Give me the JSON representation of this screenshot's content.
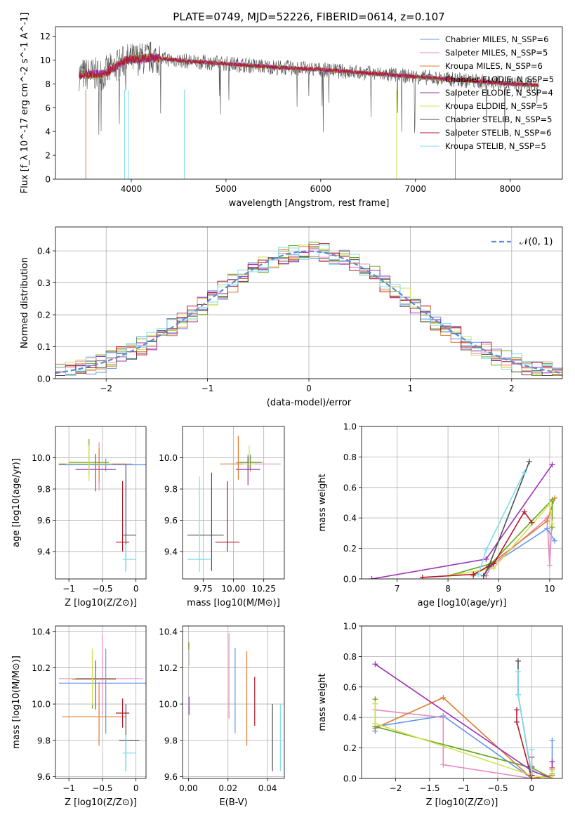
{
  "figure_title": "PLATE=0749, MJD=52226, FIBERID=0614, z=0.107",
  "series_colors": [
    "#6495ed",
    "#e78ac3",
    "#e07b2e",
    "#66a61e",
    "#9e32b5",
    "#d4e157",
    "#505050",
    "#b2182b",
    "#80deea"
  ],
  "chart_data": [
    {
      "id": "spectrum",
      "type": "line",
      "title": "PLATE=0749, MJD=52226, FIBERID=0614, z=0.107",
      "xlabel": "wavelength [Angstrom, rest frame]",
      "ylabel": "Flux [f_λ 10^-17 erg cm^-2 s^-1 A^-1]",
      "xlim": [
        3200,
        8550
      ],
      "ylim": [
        0,
        12.8
      ],
      "xticks": [
        4000,
        5000,
        6000,
        7000,
        8000
      ],
      "yticks": [
        0,
        2,
        4,
        6,
        8,
        10,
        12
      ],
      "legend_position": "top-right",
      "series": [
        {
          "name": "Chabrier MILES, N_SSP=6"
        },
        {
          "name": "Salpeter MILES, N_SSP=5"
        },
        {
          "name": "Kroupa MILES, N_SSP=6"
        },
        {
          "name": "Chabrier ELODIE, N_SSP=5"
        },
        {
          "name": "Salpeter ELODIE, N_SSP=4"
        },
        {
          "name": "Kroupa ELODIE, N_SSP=5"
        },
        {
          "name": "Chabrier STELIB, N_SSP=5"
        },
        {
          "name": "Salpeter STELIB, N_SSP=6"
        },
        {
          "name": "Kroupa STELIB, N_SSP=5"
        }
      ],
      "continuum": {
        "x": [
          3450,
          3700,
          3950,
          4200,
          4600,
          5000,
          5500,
          6000,
          6500,
          7000,
          7500,
          8000,
          8300
        ],
        "y": [
          8.8,
          8.8,
          10.0,
          10.2,
          9.9,
          9.7,
          9.4,
          9.2,
          8.9,
          8.6,
          8.3,
          8.0,
          7.9
        ]
      }
    },
    {
      "id": "residuals",
      "type": "step",
      "xlabel": "(data-model)/error",
      "ylabel": "Normed distribution",
      "xlim": [
        -2.5,
        2.5
      ],
      "ylim": [
        0,
        0.475
      ],
      "xticks": [
        -2,
        -1,
        0,
        1,
        2
      ],
      "yticks": [
        0.0,
        0.1,
        0.2,
        0.3,
        0.4
      ],
      "grid": true,
      "legend_position": "top-right",
      "reference_label": "𝒩(0, 1)",
      "reference_color": "#5b8bd6"
    },
    {
      "id": "age_vs_Z",
      "type": "errorbar",
      "xlabel": "Z [log10(Z/Z⊙)]",
      "ylabel": "age [log10(age/yr)]",
      "xlim": [
        -1.2,
        0.15
      ],
      "ylim": [
        9.225,
        10.2
      ],
      "xticks": [
        -1.0,
        -0.5,
        0.0
      ],
      "yticks": [
        9.4,
        9.6,
        9.8,
        10.0
      ],
      "grid": true,
      "points": [
        {
          "x": -0.45,
          "xerr": [
            0.7,
            0.6
          ],
          "y": 9.955,
          "yerr": [
            0.04,
            0.04
          ]
        },
        {
          "x": -0.55,
          "xerr": [
            0.6,
            0.5
          ],
          "y": 9.96,
          "yerr": [
            0.17,
            0.14
          ]
        },
        {
          "x": -0.55,
          "xerr": [
            0.6,
            0.4
          ],
          "y": 9.96,
          "yerr": [
            0.12,
            0.1
          ]
        },
        {
          "x": -0.7,
          "xerr": [
            0.3,
            0.3
          ],
          "y": 9.97,
          "yerr": [
            0.08,
            0.15
          ]
        },
        {
          "x": -0.6,
          "xerr": [
            0.3,
            0.3
          ],
          "y": 9.925,
          "yerr": [
            0.14,
            0.1
          ]
        },
        {
          "x": -0.7,
          "xerr": [
            0.35,
            0.35
          ],
          "y": 9.96,
          "yerr": [
            0.11,
            0.12
          ]
        },
        {
          "x": -0.15,
          "xerr": [
            0.05,
            0.15
          ],
          "y": 9.505,
          "yerr": [
            0.23,
            0.45
          ]
        },
        {
          "x": -0.2,
          "xerr": [
            0.1,
            0.1
          ],
          "y": 9.46,
          "yerr": [
            0.06,
            0.39
          ]
        },
        {
          "x": -0.15,
          "xerr": [
            0.05,
            0.15
          ],
          "y": 9.35,
          "yerr": [
            0.08,
            0.1
          ]
        }
      ]
    },
    {
      "id": "age_vs_mass",
      "type": "errorbar",
      "xlabel": "mass [log10(M/M⊙)]",
      "xlim": [
        9.58,
        10.42
      ],
      "ylim": [
        9.225,
        10.2
      ],
      "xticks": [
        9.75,
        10.0,
        10.25
      ],
      "xticklabels": [
        "9.75",
        "10.00",
        "10.25"
      ],
      "yticks": [
        9.4,
        9.6,
        9.8,
        10.0
      ],
      "grid": true,
      "points": [
        {
          "x": 10.12,
          "xerr": [
            0.1,
            0.1
          ],
          "y": 9.97,
          "yerr": [
            0.05,
            0.05
          ]
        },
        {
          "x": 10.14,
          "xerr": [
            0.2,
            0.25
          ],
          "y": 9.96,
          "yerr": [
            0.05,
            0.05
          ]
        },
        {
          "x": 10.04,
          "xerr": [
            0.15,
            0.15
          ],
          "y": 9.96,
          "yerr": [
            0.1,
            0.18
          ]
        },
        {
          "x": 10.14,
          "xerr": [
            0.1,
            0.1
          ],
          "y": 9.97,
          "yerr": [
            0.05,
            0.05
          ]
        },
        {
          "x": 10.12,
          "xerr": [
            0.1,
            0.1
          ],
          "y": 9.925,
          "yerr": [
            0.1,
            0.08
          ]
        },
        {
          "x": 10.13,
          "xerr": [
            0.05,
            0.05
          ],
          "y": 9.96,
          "yerr": [
            0.03,
            0.12
          ]
        },
        {
          "x": 9.82,
          "xerr": [
            0.2,
            0.1
          ],
          "y": 9.505,
          "yerr": [
            0.23,
            0.4
          ]
        },
        {
          "x": 9.95,
          "xerr": [
            0.1,
            0.1
          ],
          "y": 9.46,
          "yerr": [
            0.06,
            0.39
          ]
        },
        {
          "x": 9.72,
          "xerr": [
            0.1,
            0.1
          ],
          "y": 9.35,
          "yerr": [
            0.08,
            0.53
          ]
        }
      ]
    },
    {
      "id": "weight_vs_age",
      "type": "line",
      "xlabel": "age [log10(age/yr)]",
      "ylabel": "mass weight",
      "xlim": [
        6.3,
        10.25
      ],
      "ylim": [
        0,
        1
      ],
      "xticks": [
        7,
        8,
        9,
        10
      ],
      "yticks": [
        0.0,
        0.2,
        0.4,
        0.6,
        0.8,
        1.0
      ],
      "grid": true,
      "series": [
        {
          "x": [
            8.7,
            8.85,
            9.95,
            10.1
          ],
          "y": [
            0.02,
            0.09,
            0.33,
            0.25
          ]
        },
        {
          "x": [
            8.75,
            8.85,
            9.95,
            10.0,
            10.05
          ],
          "y": [
            0.02,
            0.08,
            0.4,
            0.09,
            0.4
          ]
        },
        {
          "x": [
            8.5,
            8.85,
            9.95,
            10.1
          ],
          "y": [
            0.02,
            0.1,
            0.38,
            0.53
          ]
        },
        {
          "x": [
            8.0,
            8.85,
            10.05,
            10.05
          ],
          "y": [
            0.02,
            0.1,
            0.52,
            0.34
          ]
        },
        {
          "x": [
            6.5,
            8.75,
            10.05
          ],
          "y": [
            0.0,
            0.13,
            0.75
          ]
        },
        {
          "x": [
            8.0,
            8.9,
            10.0,
            10.05
          ],
          "y": [
            0.02,
            0.07,
            0.49,
            0.36
          ]
        },
        {
          "x": [
            8.7,
            8.8,
            9.6
          ],
          "y": [
            0.02,
            0.08,
            0.77
          ]
        },
        {
          "x": [
            7.5,
            8.5,
            8.9,
            9.5,
            9.65
          ],
          "y": [
            0.01,
            0.03,
            0.1,
            0.44,
            0.37
          ]
        },
        {
          "x": [
            8.6,
            8.75,
            9.5
          ],
          "y": [
            0.03,
            0.19,
            0.7
          ]
        }
      ]
    },
    {
      "id": "mass_vs_Z",
      "type": "errorbar",
      "xlabel": "Z [log10(Z/Z⊙)]",
      "ylabel": "mass [log10(M/M⊙)]",
      "xlim": [
        -1.2,
        0.15
      ],
      "ylim": [
        9.59,
        10.43
      ],
      "xticks": [
        -1.0,
        -0.5,
        0.0
      ],
      "yticks": [
        9.6,
        9.8,
        10.0,
        10.2,
        10.4
      ],
      "grid": true,
      "points": [
        {
          "x": -0.45,
          "xerr": [
            0.7,
            0.6
          ],
          "y": 10.115,
          "yerr": [
            0.28,
            0.19
          ]
        },
        {
          "x": -0.5,
          "xerr": [
            0.65,
            0.6
          ],
          "y": 10.14,
          "yerr": [
            0.2,
            0.24
          ]
        },
        {
          "x": -0.55,
          "xerr": [
            0.55,
            0.4
          ],
          "y": 9.93,
          "yerr": [
            0.16,
            0.19
          ]
        },
        {
          "x": -0.65,
          "xerr": [
            0.3,
            0.35
          ],
          "y": 10.135,
          "yerr": [
            0.16,
            0.16
          ]
        },
        {
          "x": -0.6,
          "xerr": [
            0.3,
            0.3
          ],
          "y": 10.14,
          "yerr": [
            0.17,
            0.1
          ]
        },
        {
          "x": -0.65,
          "xerr": [
            0.3,
            0.35
          ],
          "y": 10.135,
          "yerr": [
            0.14,
            0.17
          ]
        },
        {
          "x": -0.15,
          "xerr": [
            0.1,
            0.2
          ],
          "y": 9.8,
          "yerr": [
            0.17,
            0.2
          ]
        },
        {
          "x": -0.2,
          "xerr": [
            0.1,
            0.1
          ],
          "y": 9.95,
          "yerr": [
            0.08,
            0.08
          ]
        },
        {
          "x": -0.15,
          "xerr": [
            0.05,
            0.15
          ],
          "y": 9.73,
          "yerr": [
            0.1,
            0.1
          ]
        }
      ]
    },
    {
      "id": "mass_vs_ebv",
      "type": "errorbar",
      "xlabel": "E(B-V)",
      "xlim": [
        -0.003,
        0.0485
      ],
      "ylim": [
        9.59,
        10.43
      ],
      "xticks": [
        0.0,
        0.02,
        0.04
      ],
      "xticklabels": [
        "0.00",
        "0.02",
        "0.04"
      ],
      "yticks": [
        9.6,
        9.8,
        10.0,
        10.2,
        10.4
      ],
      "grid": true,
      "points": [
        {
          "x": 0.0236,
          "y": 10.1,
          "yerr": [
            0.26,
            0.21
          ]
        },
        {
          "x": 0.0205,
          "y": 10.13,
          "yerr": [
            0.21,
            0.26
          ]
        },
        {
          "x": 0.0295,
          "y": 10.04,
          "yerr": [
            0.27,
            0.25
          ]
        },
        {
          "x": 0.0002,
          "y": 10.32,
          "yerr": [
            0.02,
            0.02
          ]
        },
        {
          "x": 0.0003,
          "y": 10.0,
          "yerr": [
            0.06,
            0.04
          ]
        },
        {
          "x": 0.0004,
          "y": 10.26,
          "yerr": [
            0.05,
            0.05
          ]
        },
        {
          "x": 0.0425,
          "y": 9.8,
          "yerr": [
            0.17,
            0.2
          ]
        },
        {
          "x": 0.0335,
          "y": 10.02,
          "yerr": [
            0.14,
            0.13
          ]
        },
        {
          "x": 0.0465,
          "y": 9.85,
          "yerr": [
            0.22,
            0.15
          ]
        }
      ]
    },
    {
      "id": "weight_vs_Z",
      "type": "line",
      "xlabel": "Z [log10(Z/Z⊙)]",
      "ylabel": "mass weight",
      "xlim": [
        -2.5,
        0.45
      ],
      "ylim": [
        0,
        1
      ],
      "xticks": [
        -2.0,
        -1.5,
        -1.0,
        -0.5,
        0.0
      ],
      "yticks": [
        0.0,
        0.2,
        0.4,
        0.6,
        0.8,
        1.0
      ],
      "grid": true,
      "series": [
        {
          "x": [
            -2.3,
            -2.3,
            -1.3,
            0.0,
            0.3,
            0.3
          ],
          "y": [
            0.31,
            0.34,
            0.41,
            0.0,
            0.02,
            0.25
          ]
        },
        {
          "x": [
            -2.3,
            -1.3,
            -1.3,
            0.0,
            0.3,
            0.3
          ],
          "y": [
            0.45,
            0.4,
            0.09,
            0.0,
            0.02,
            0.06
          ]
        },
        {
          "x": [
            -2.3,
            -1.3,
            0.0,
            0.3,
            0.3
          ],
          "y": [
            0.33,
            0.53,
            0.0,
            0.02,
            0.07
          ]
        },
        {
          "x": [
            -2.3,
            -2.3,
            0.0,
            0.3,
            0.3
          ],
          "y": [
            0.52,
            0.34,
            0.07,
            0.0,
            0.03
          ]
        },
        {
          "x": [
            -2.3,
            0.0,
            0.3,
            0.3
          ],
          "y": [
            0.75,
            0.05,
            0.0,
            0.11
          ]
        },
        {
          "x": [
            -2.3,
            -2.3,
            0.0,
            0.3,
            0.3
          ],
          "y": [
            0.49,
            0.36,
            0.02,
            0.0,
            0.05
          ]
        },
        {
          "x": [
            -0.2,
            -0.2,
            0.0,
            0.0
          ],
          "y": [
            0.77,
            0.55,
            0.02,
            0.08
          ]
        },
        {
          "x": [
            -0.22,
            -0.22,
            0.0,
            0.0
          ],
          "y": [
            0.45,
            0.37,
            0.0,
            0.14
          ]
        },
        {
          "x": [
            -0.2,
            -0.2,
            0.0,
            0.0
          ],
          "y": [
            0.7,
            0.55,
            0.03,
            0.19
          ]
        }
      ]
    }
  ]
}
